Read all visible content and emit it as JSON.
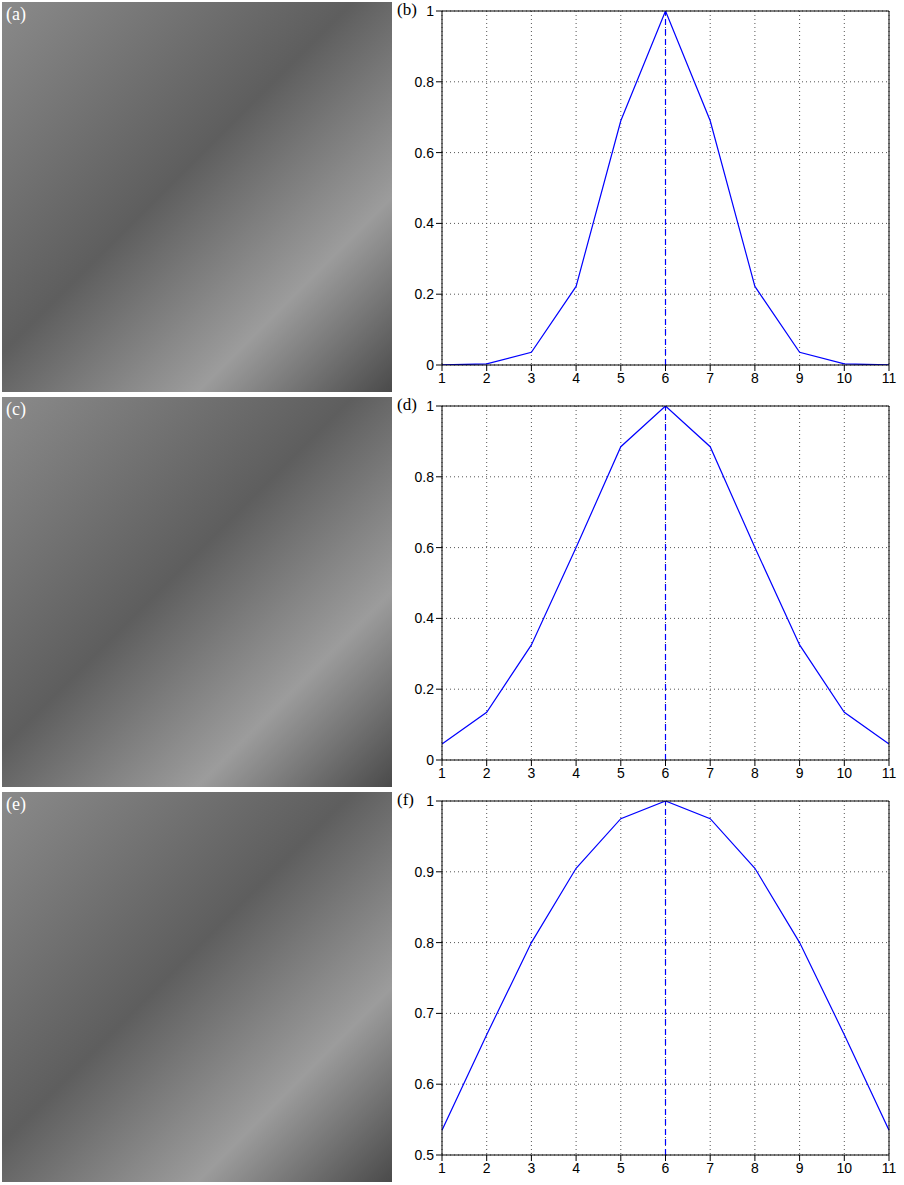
{
  "chart_data": [
    {
      "type": "line",
      "panel_label": "(b)",
      "x": [
        1,
        2,
        3,
        4,
        5,
        6,
        7,
        8,
        9,
        10,
        11
      ],
      "values": [
        0.0001,
        0.003,
        0.036,
        0.222,
        0.69,
        1.0,
        0.69,
        0.222,
        0.036,
        0.003,
        0.0001
      ],
      "color": "#0000ff",
      "line_style": "solid",
      "xlim": [
        1,
        11
      ],
      "xticks": [
        1,
        2,
        3,
        4,
        5,
        6,
        7,
        8,
        9,
        10,
        11
      ],
      "ylim": [
        0,
        1
      ],
      "yticks": [
        0,
        0.2,
        0.4,
        0.6,
        0.8,
        1
      ],
      "grid": true,
      "reference_x": 6
    },
    {
      "type": "line",
      "panel_label": "(d)",
      "x": [
        1,
        2,
        3,
        4,
        5,
        6,
        7,
        8,
        9,
        10,
        11
      ],
      "values": [
        0.045,
        0.135,
        0.325,
        0.6,
        0.885,
        1.0,
        0.885,
        0.6,
        0.325,
        0.135,
        0.045
      ],
      "color": "#0000ff",
      "line_style": "solid",
      "xlim": [
        1,
        11
      ],
      "xticks": [
        1,
        2,
        3,
        4,
        5,
        6,
        7,
        8,
        9,
        10,
        11
      ],
      "ylim": [
        0,
        1
      ],
      "yticks": [
        0,
        0.2,
        0.4,
        0.6,
        0.8,
        1
      ],
      "grid": true,
      "reference_x": 6
    },
    {
      "type": "line",
      "panel_label": "(f)",
      "x": [
        1,
        2,
        3,
        4,
        5,
        6,
        7,
        8,
        9,
        10,
        11
      ],
      "values": [
        0.535,
        0.67,
        0.8,
        0.905,
        0.975,
        1.0,
        0.975,
        0.905,
        0.8,
        0.67,
        0.535
      ],
      "color": "#0000ff",
      "line_style": "solid",
      "xlim": [
        1,
        11
      ],
      "xticks": [
        1,
        2,
        3,
        4,
        5,
        6,
        7,
        8,
        9,
        10,
        11
      ],
      "ylim": [
        0.5,
        1
      ],
      "yticks": [
        0.5,
        0.6,
        0.7,
        0.8,
        0.9,
        1
      ],
      "grid": true,
      "reference_x": 6
    }
  ],
  "images": [
    {
      "panel_label": "(a)"
    },
    {
      "panel_label": "(c)"
    },
    {
      "panel_label": "(e)"
    }
  ]
}
